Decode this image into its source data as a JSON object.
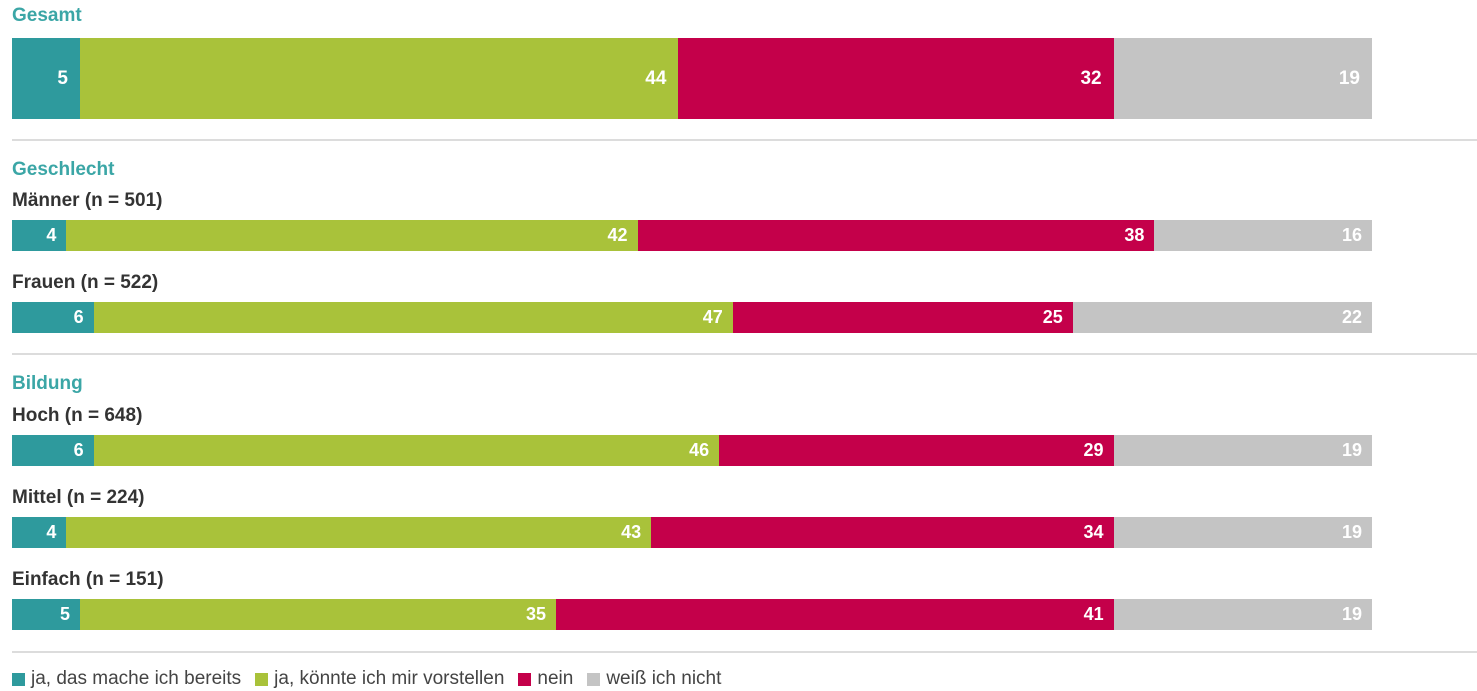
{
  "colors": {
    "bereits": "#2e9a9d",
    "vorstellen": "#a9c23a",
    "nein": "#c4004a",
    "weiss_nicht": "#c4c4c4",
    "section_title": "#3ba6a6"
  },
  "chart_data": {
    "type": "bar",
    "orientation": "horizontal",
    "stacked": true,
    "xlim": [
      0,
      100
    ],
    "grid": false,
    "legend_position": "bottom-left",
    "series": [
      {
        "key": "bereits",
        "name": "ja, das mache ich bereits"
      },
      {
        "key": "vorstellen",
        "name": "ja, könnte ich mir vorstellen"
      },
      {
        "key": "nein",
        "name": "nein"
      },
      {
        "key": "weiss_nicht",
        "name": "weiß ich nicht"
      }
    ],
    "groups": [
      {
        "title": "Gesamt",
        "rows": [
          {
            "label": "",
            "values": [
              5,
              44,
              32,
              19
            ]
          }
        ]
      },
      {
        "title": "Geschlecht",
        "rows": [
          {
            "label": "Männer (n = 501)",
            "values": [
              4,
              42,
              38,
              16
            ]
          },
          {
            "label": "Frauen (n = 522)",
            "values": [
              6,
              47,
              25,
              22
            ]
          }
        ]
      },
      {
        "title": "Bildung",
        "rows": [
          {
            "label": "Hoch (n = 648)",
            "values": [
              6,
              46,
              29,
              19
            ]
          },
          {
            "label": "Mittel (n = 224)",
            "values": [
              4,
              43,
              34,
              19
            ]
          },
          {
            "label": "Einfach (n = 151)",
            "values": [
              5,
              35,
              41,
              19
            ]
          }
        ]
      }
    ]
  }
}
